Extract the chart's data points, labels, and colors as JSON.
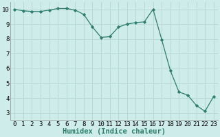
{
  "x": [
    0,
    1,
    2,
    3,
    4,
    5,
    6,
    7,
    8,
    9,
    10,
    11,
    12,
    13,
    14,
    15,
    16,
    17,
    18,
    19,
    20,
    21,
    22,
    23
  ],
  "y": [
    10.0,
    9.9,
    9.85,
    9.85,
    9.95,
    10.05,
    10.05,
    9.95,
    9.65,
    8.8,
    8.1,
    8.15,
    8.8,
    9.0,
    9.1,
    9.15,
    10.0,
    7.95,
    5.85,
    4.4,
    4.2,
    3.5,
    3.1,
    4.1
  ],
  "line_color": "#2d7d6e",
  "marker": "D",
  "markersize": 2.2,
  "bg_color": "#ceecea",
  "grid_color": "#b8d8d4",
  "xlabel": "Humidex (Indice chaleur)",
  "xlabel_fontsize": 7.5,
  "tick_fontsize": 6.5,
  "ylim": [
    2.5,
    10.5
  ],
  "xlim": [
    -0.5,
    23.5
  ],
  "yticks": [
    3,
    4,
    5,
    6,
    7,
    8,
    9,
    10
  ],
  "xticks": [
    0,
    1,
    2,
    3,
    4,
    5,
    6,
    7,
    8,
    9,
    10,
    11,
    12,
    13,
    14,
    15,
    16,
    17,
    18,
    19,
    20,
    21,
    22,
    23
  ]
}
